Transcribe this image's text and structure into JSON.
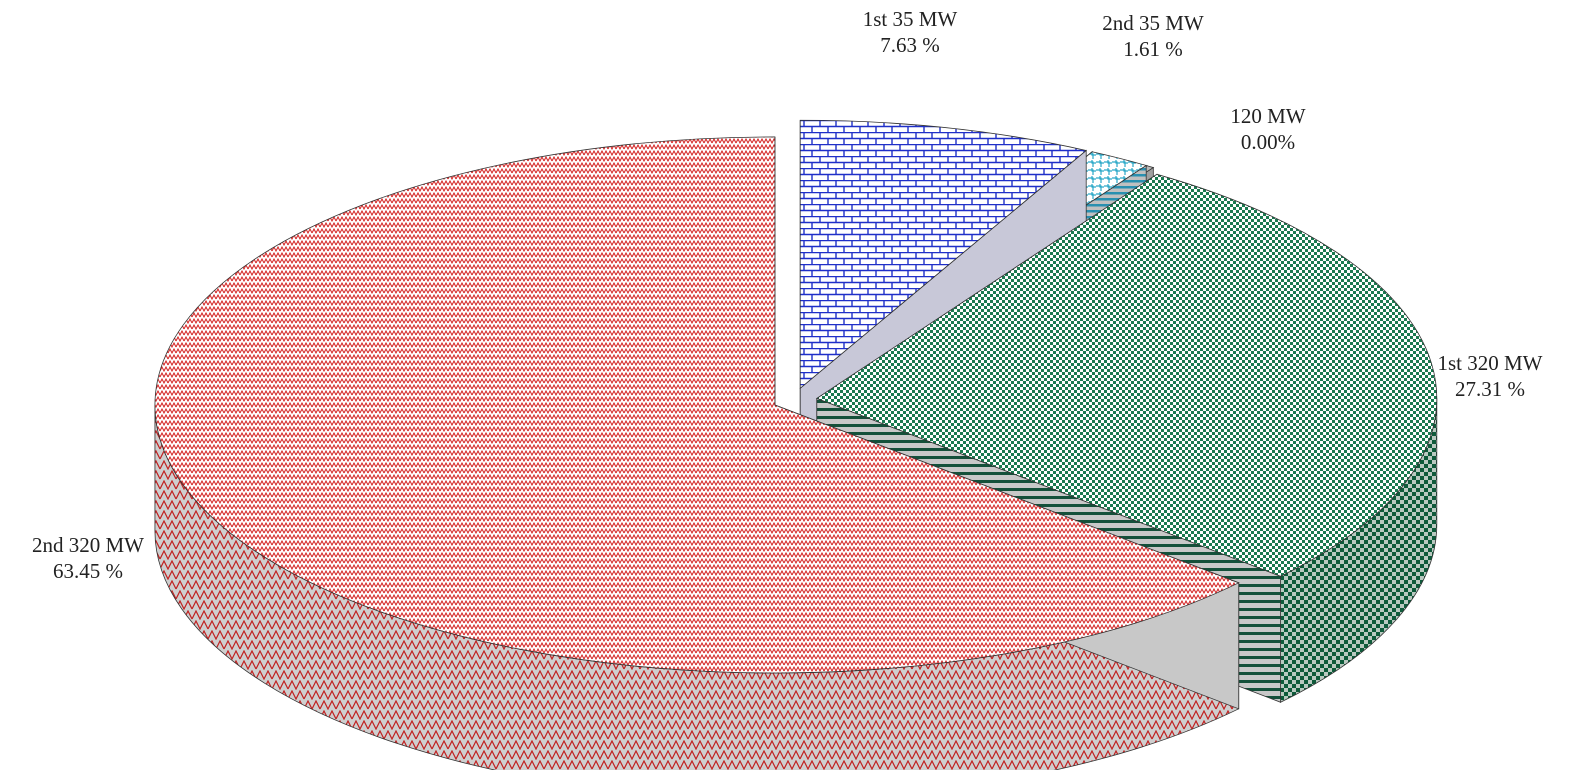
{
  "chart_data": {
    "type": "pie",
    "style": "3d exploded",
    "slices": [
      {
        "label": "1st 35 MW",
        "value_text": "7.63 %",
        "value": 7.63,
        "color": "#1f2fc8",
        "pattern": "brick"
      },
      {
        "label": "2nd 35 MW",
        "value_text": "1.61 %",
        "value": 1.61,
        "color": "#2aa8c8",
        "pattern": "weave"
      },
      {
        "label": "120 MW",
        "value_text": "0.00%",
        "value": 0.0,
        "color": "#8a8a8a",
        "pattern": "plain"
      },
      {
        "label": "1st 320 MW",
        "value_text": "27.31 %",
        "value": 27.31,
        "color": "#0f6b45",
        "pattern": "checker"
      },
      {
        "label": "2nd 320 MW",
        "value_text": "63.45 %",
        "value": 63.45,
        "color": "#d42020",
        "pattern": "zigzag"
      }
    ],
    "legend": "none"
  }
}
